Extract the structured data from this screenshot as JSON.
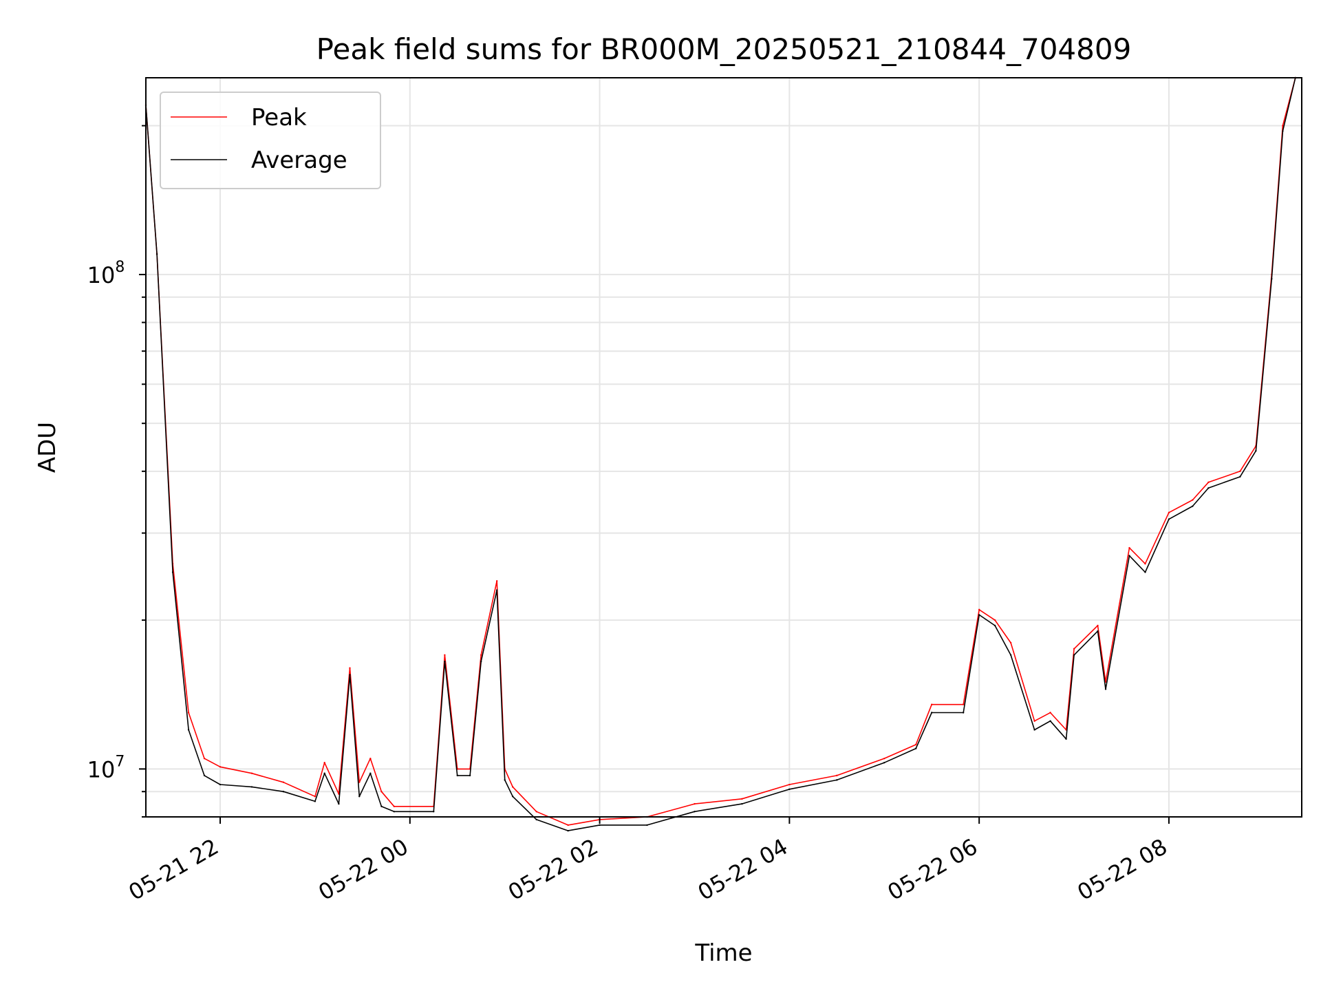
{
  "chart_data": {
    "type": "line",
    "title": "Peak field sums for BR000M_20250521_210844_704809",
    "xlabel": "Time",
    "ylabel": "ADU",
    "y_scale": "log",
    "xlim": [
      "05-21 21:13",
      "05-22 09:24"
    ],
    "ylim": [
      8000000,
      250000000
    ],
    "grid": true,
    "legend_position": "upper-left",
    "x_ticks": [
      "05-21 22",
      "05-22 00",
      "05-22 02",
      "05-22 04",
      "05-22 06",
      "05-22 08"
    ],
    "y_ticks": [
      {
        "base": "10",
        "exp": "8"
      },
      {
        "base": "10",
        "exp": "7"
      }
    ],
    "x": [
      "05-21 21:13",
      "05-21 21:20",
      "05-21 21:30",
      "05-21 21:40",
      "05-21 21:50",
      "05-21 22:00",
      "05-21 22:20",
      "05-21 22:40",
      "05-21 23:00",
      "05-21 23:06",
      "05-21 23:15",
      "05-21 23:22",
      "05-21 23:28",
      "05-21 23:35",
      "05-21 23:42",
      "05-21 23:50",
      "05-22 00:15",
      "05-22 00:22",
      "05-22 00:30",
      "05-22 00:38",
      "05-22 00:45",
      "05-22 00:55",
      "05-22 01:00",
      "05-22 01:05",
      "05-22 01:20",
      "05-22 01:40",
      "05-22 02:00",
      "05-22 02:30",
      "05-22 03:00",
      "05-22 03:30",
      "05-22 04:00",
      "05-22 04:30",
      "05-22 05:00",
      "05-22 05:20",
      "05-22 05:30",
      "05-22 05:50",
      "05-22 06:00",
      "05-22 06:10",
      "05-22 06:20",
      "05-22 06:35",
      "05-22 06:45",
      "05-22 06:55",
      "05-22 07:00",
      "05-22 07:15",
      "05-22 07:20",
      "05-22 07:35",
      "05-22 07:45",
      "05-22 08:00",
      "05-22 08:15",
      "05-22 08:25",
      "05-22 08:45",
      "05-22 08:55",
      "05-22 09:05",
      "05-22 09:12",
      "05-22 09:20"
    ],
    "series": [
      {
        "name": "Peak",
        "color": "#ff0000",
        "values": [
          220000000,
          110000000,
          26000000,
          13000000,
          10500000,
          10100000,
          9800000,
          9400000,
          8800000,
          10300000,
          8900000,
          16000000,
          9400000,
          10500000,
          9000000,
          8400000,
          8400000,
          17000000,
          10000000,
          10000000,
          17000000,
          24000000,
          10000000,
          9200000,
          8200000,
          7700000,
          7900000,
          8000000,
          8500000,
          8700000,
          9300000,
          9700000,
          10500000,
          11200000,
          13500000,
          13500000,
          21000000,
          20000000,
          18000000,
          12500000,
          13000000,
          12000000,
          17500000,
          19500000,
          15000000,
          28000000,
          26000000,
          33000000,
          35000000,
          38000000,
          40000000,
          45000000,
          100000000,
          200000000,
          250000000
        ]
      },
      {
        "name": "Average",
        "color": "#000000",
        "values": [
          220000000,
          110000000,
          25000000,
          12000000,
          9700000,
          9300000,
          9200000,
          9000000,
          8600000,
          9800000,
          8500000,
          15500000,
          8800000,
          9800000,
          8400000,
          8200000,
          8200000,
          16500000,
          9700000,
          9700000,
          16500000,
          23000000,
          9500000,
          8800000,
          7900000,
          7500000,
          7700000,
          7700000,
          8200000,
          8500000,
          9100000,
          9500000,
          10300000,
          11000000,
          13000000,
          13000000,
          20500000,
          19500000,
          17000000,
          12000000,
          12500000,
          11500000,
          17000000,
          19000000,
          14500000,
          27000000,
          25000000,
          32000000,
          34000000,
          37000000,
          39000000,
          44000000,
          98000000,
          195000000,
          250000000
        ]
      }
    ]
  }
}
